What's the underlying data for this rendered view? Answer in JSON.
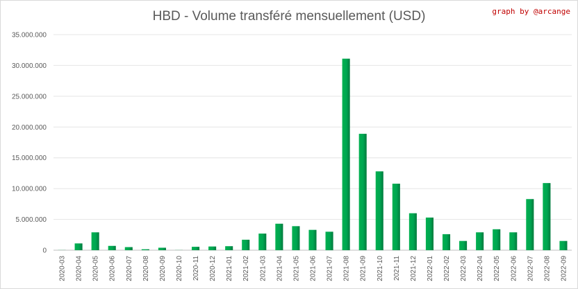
{
  "chart_data": {
    "type": "bar",
    "title": "HBD - Volume transféré mensuellement (USD)",
    "credit": "graph by @arcange",
    "xlabel": "",
    "ylabel": "",
    "ylim": [
      0,
      35000000
    ],
    "yticks": [
      0,
      5000000,
      10000000,
      15000000,
      20000000,
      25000000,
      30000000,
      35000000
    ],
    "ytick_labels": [
      "0",
      "5.000.000",
      "10.000.000",
      "15.000.000",
      "20.000.000",
      "25.000.000",
      "30.000.000",
      "35.000.000"
    ],
    "grid": true,
    "legend": "none",
    "bar_color": "#00a651",
    "categories": [
      "2020-03",
      "2020-04",
      "2020-05",
      "2020-06",
      "2020-07",
      "2020-08",
      "2020-09",
      "2020-10",
      "2020-11",
      "2020-12",
      "2021-01",
      "2021-02",
      "2021-03",
      "2021-04",
      "2021-05",
      "2021-06",
      "2021-07",
      "2021-08",
      "2021-09",
      "2021-10",
      "2021-11",
      "2021-12",
      "2022-01",
      "2022-02",
      "2022-03",
      "2022-04",
      "2022-05",
      "2022-06",
      "2022-07",
      "2022-08",
      "2022-09"
    ],
    "values": [
      20000,
      1100000,
      2900000,
      700000,
      500000,
      150000,
      400000,
      20000,
      550000,
      600000,
      650000,
      1700000,
      2700000,
      4300000,
      3900000,
      3300000,
      3000000,
      31100000,
      18900000,
      12800000,
      10800000,
      6000000,
      5300000,
      2600000,
      1500000,
      2900000,
      3400000,
      2900000,
      8300000,
      10900000,
      1500000
    ]
  }
}
